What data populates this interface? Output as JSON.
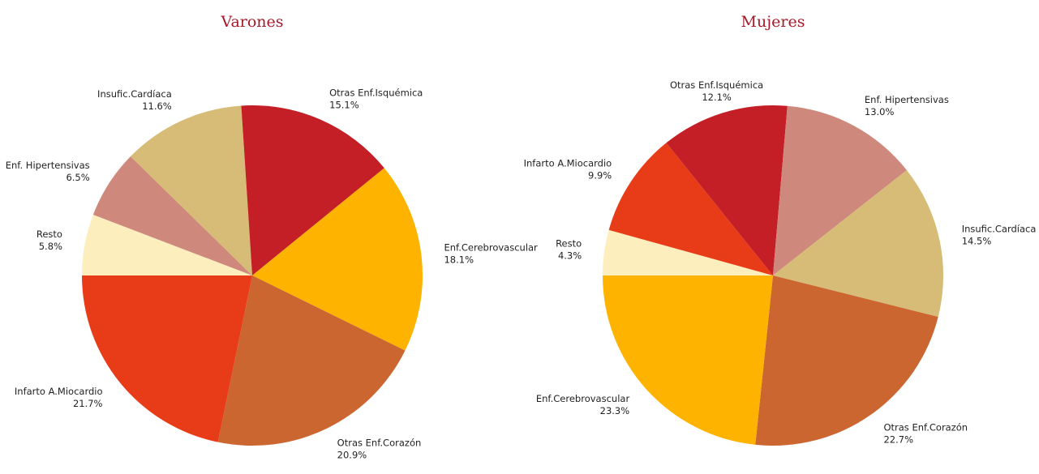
{
  "chart_data": [
    {
      "type": "pie",
      "title": "Varones",
      "categories": [
        "Resto",
        "Enf. Hipertensivas",
        "Insufic.Cardíaca",
        "Otras Enf.Isquémica",
        "Enf.Cerebrovascular",
        "Otras Enf.Corazón",
        "Infarto A.Miocardio"
      ],
      "values": [
        5.8,
        6.5,
        11.6,
        15.1,
        18.1,
        20.9,
        21.7
      ],
      "value_labels": [
        "5.8%",
        "6.5%",
        "11.6%",
        "15.1%",
        "18.1%",
        "20.9%",
        "21.7%"
      ],
      "colors": [
        "#fdeebd",
        "#cf897c",
        "#d6bc76",
        "#c41f26",
        "#fdb300",
        "#cb6631",
        "#e73c17"
      ]
    },
    {
      "type": "pie",
      "title": "Mujeres",
      "categories": [
        "Resto",
        "Infarto A.Miocardio",
        "Otras Enf.Isquémica",
        "Enf. Hipertensivas",
        "Insufic.Cardíaca",
        "Otras Enf.Corazón",
        "Enf.Cerebrovascular"
      ],
      "values": [
        4.3,
        9.9,
        12.1,
        13.0,
        14.5,
        22.7,
        23.3
      ],
      "value_labels": [
        "4.3%",
        "9.9%",
        "12.1%",
        "13.0%",
        "14.5%",
        "22.7%",
        "23.3%"
      ],
      "colors": [
        "#fdeebd",
        "#e73c17",
        "#c41f26",
        "#cf897c",
        "#d6bc76",
        "#cb6631",
        "#fdb300"
      ]
    }
  ]
}
